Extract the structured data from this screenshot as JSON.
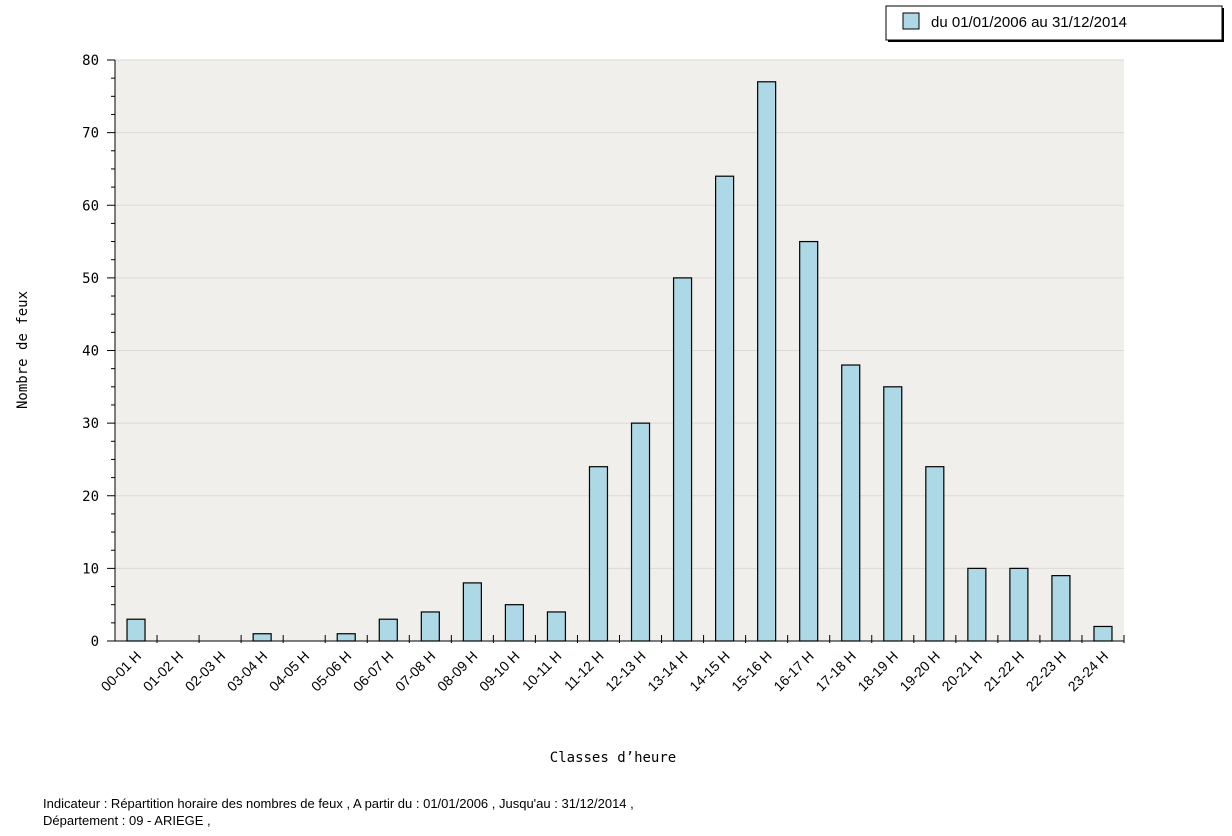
{
  "legend": {
    "label": "du 01/01/2006 au 31/12/2014",
    "color": "#add8e6"
  },
  "footer": {
    "line1": "Indicateur : Répartition horaire des nombres de feux , A partir du : 01/01/2006 , Jusqu'au : 31/12/2014 ,",
    "line2": "Département : 09 - ARIEGE ,"
  },
  "chart_data": {
    "type": "bar",
    "title": "",
    "xlabel": "Classes d’heure",
    "ylabel": "Nombre de feux",
    "ylim": [
      0,
      80
    ],
    "y_ticks": [
      0,
      10,
      20,
      30,
      40,
      50,
      60,
      70,
      80
    ],
    "grid": true,
    "legend_position": "top-right",
    "categories": [
      "00-01 H",
      "01-02 H",
      "02-03 H",
      "03-04 H",
      "04-05 H",
      "05-06 H",
      "06-07 H",
      "07-08 H",
      "08-09 H",
      "09-10 H",
      "10-11 H",
      "11-12 H",
      "12-13 H",
      "13-14 H",
      "14-15 H",
      "15-16 H",
      "16-17 H",
      "17-18 H",
      "18-19 H",
      "19-20 H",
      "20-21 H",
      "21-22 H",
      "22-23 H",
      "23-24 H"
    ],
    "series": [
      {
        "name": "du 01/01/2006 au 31/12/2014",
        "values": [
          3,
          0,
          0,
          1,
          0,
          1,
          3,
          4,
          8,
          5,
          4,
          24,
          30,
          50,
          64,
          77,
          55,
          38,
          35,
          24,
          10,
          10,
          9,
          2
        ]
      }
    ],
    "colors": {
      "bar": "#add8e6",
      "bar_stroke": "#000000",
      "plot_bg": "#f1efeb",
      "grid": "#dcdad4"
    }
  }
}
